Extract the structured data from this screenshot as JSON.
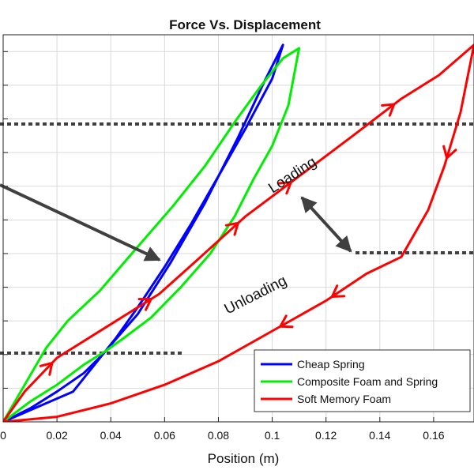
{
  "chart_data": {
    "type": "line",
    "title": "Force Vs. Displacement",
    "xlabel": "Position (m)",
    "ylabel": "",
    "xlim": [
      0,
      0.175
    ],
    "ylim": [
      0,
      11.5
    ],
    "x_ticks": [
      0,
      0.02,
      0.04,
      0.06,
      0.08,
      0.1,
      0.12,
      0.14,
      0.16
    ],
    "x_tick_labels": [
      "0",
      "0.02",
      "0.04",
      "0.06",
      "0.08",
      "0.1",
      "0.12",
      "0.14",
      "0.16"
    ],
    "grid": true,
    "legend_position": "bottom-right",
    "series": [
      {
        "name": "Cheap Spring",
        "color": "#0000ff",
        "x": [
          0,
          0.026,
          0.038,
          0.05,
          0.062,
          0.075,
          0.087,
          0.097,
          0.104,
          0.1,
          0.09,
          0.08,
          0.07,
          0.06,
          0.05,
          0.042,
          0.037,
          0.03,
          0.02,
          0.01,
          0
        ],
        "y": [
          0,
          0.9,
          2.1,
          3.2,
          4.7,
          6.5,
          8.4,
          10.1,
          11.2,
          10.2,
          8.7,
          7.3,
          5.9,
          4.6,
          3.4,
          2.5,
          2.0,
          1.45,
          0.9,
          0.4,
          0
        ]
      },
      {
        "name": "Composite Foam and Spring",
        "color": "#00ee00",
        "x": [
          0,
          0.008,
          0.016,
          0.024,
          0.036,
          0.05,
          0.063,
          0.075,
          0.086,
          0.096,
          0.104,
          0.11,
          0.106,
          0.1,
          0.093,
          0.086,
          0.077,
          0.066,
          0.055,
          0.045,
          0.038,
          0.03,
          0.02,
          0.01,
          0
        ],
        "y": [
          0,
          1.1,
          2.2,
          3.0,
          3.9,
          5.2,
          6.4,
          7.6,
          8.9,
          10.0,
          10.8,
          11.1,
          9.4,
          8.2,
          7.2,
          6.1,
          5.0,
          4.0,
          3.1,
          2.5,
          2.1,
          1.7,
          1.1,
          0.6,
          0
        ]
      },
      {
        "name": "Soft Memory Foam",
        "color": "#ff0000",
        "x": [
          0,
          0.008,
          0.02,
          0.038,
          0.058,
          0.072,
          0.09,
          0.11,
          0.13,
          0.148,
          0.162,
          0.175,
          0.17,
          0.164,
          0.158,
          0.148,
          0.135,
          0.12,
          0.1,
          0.08,
          0.06,
          0.04,
          0.02,
          0
        ],
        "y": [
          0,
          0.9,
          1.9,
          2.8,
          3.8,
          4.8,
          6.1,
          7.3,
          8.5,
          9.6,
          10.3,
          11.2,
          9.2,
          7.6,
          6.3,
          4.9,
          4.4,
          3.6,
          2.7,
          1.8,
          1.1,
          0.55,
          0.15,
          0
        ]
      }
    ],
    "annotations": {
      "loading": "Loading",
      "unloading": "Unloading"
    }
  }
}
